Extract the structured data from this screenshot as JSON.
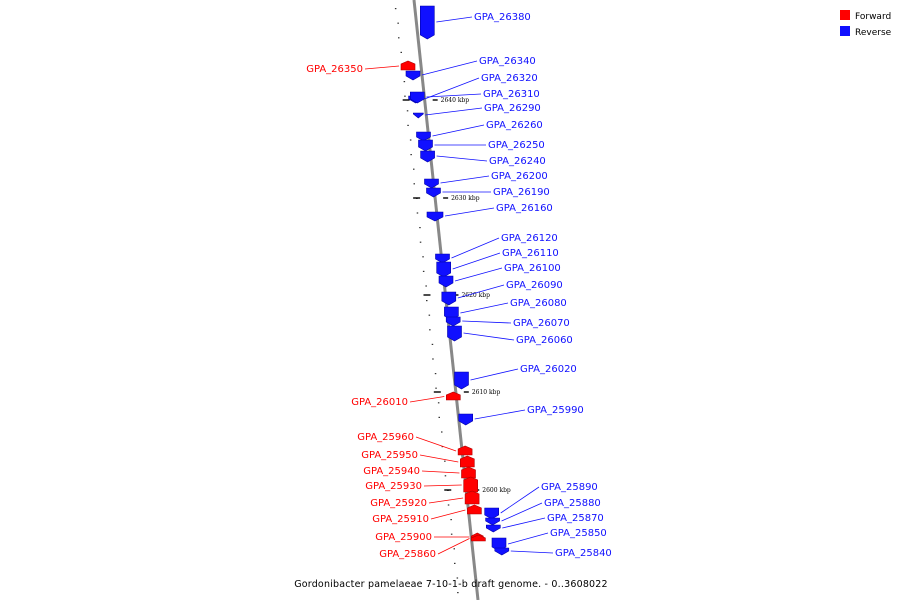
{
  "caption": "Gordonibacter pamelaeae 7-10-1-b draft genome. - 0..3608022",
  "colors": {
    "forward": "#ff0000",
    "reverse": "#1010ff",
    "backbone": "#888888"
  },
  "legend": [
    {
      "label": "Forward",
      "strand": "forward"
    },
    {
      "label": "Reverse",
      "strand": "reverse"
    }
  ],
  "ticks": [
    {
      "label": "2640 kbp"
    },
    {
      "label": "2630 kbp"
    },
    {
      "label": "2620 kbp"
    },
    {
      "label": "2610 kbp"
    },
    {
      "label": "2600 kbp"
    }
  ],
  "genes": [
    {
      "id": "GPA_26380",
      "strand": "reverse"
    },
    {
      "id": "GPA_26350",
      "strand": "forward"
    },
    {
      "id": "GPA_26340",
      "strand": "reverse"
    },
    {
      "id": "GPA_26320",
      "strand": "reverse"
    },
    {
      "id": "GPA_26310",
      "strand": "reverse"
    },
    {
      "id": "GPA_26290",
      "strand": "reverse"
    },
    {
      "id": "GPA_26260",
      "strand": "reverse"
    },
    {
      "id": "GPA_26250",
      "strand": "reverse"
    },
    {
      "id": "GPA_26240",
      "strand": "reverse"
    },
    {
      "id": "GPA_26200",
      "strand": "reverse"
    },
    {
      "id": "GPA_26190",
      "strand": "reverse"
    },
    {
      "id": "GPA_26160",
      "strand": "reverse"
    },
    {
      "id": "GPA_26120",
      "strand": "reverse"
    },
    {
      "id": "GPA_26110",
      "strand": "reverse"
    },
    {
      "id": "GPA_26100",
      "strand": "reverse"
    },
    {
      "id": "GPA_26090",
      "strand": "reverse"
    },
    {
      "id": "GPA_26080",
      "strand": "reverse"
    },
    {
      "id": "GPA_26070",
      "strand": "reverse"
    },
    {
      "id": "GPA_26060",
      "strand": "reverse"
    },
    {
      "id": "GPA_26020",
      "strand": "reverse"
    },
    {
      "id": "GPA_26010",
      "strand": "forward"
    },
    {
      "id": "GPA_25990",
      "strand": "reverse"
    },
    {
      "id": "GPA_25960",
      "strand": "forward"
    },
    {
      "id": "GPA_25950",
      "strand": "forward"
    },
    {
      "id": "GPA_25940",
      "strand": "forward"
    },
    {
      "id": "GPA_25930",
      "strand": "forward"
    },
    {
      "id": "GPA_25920",
      "strand": "forward"
    },
    {
      "id": "GPA_25910",
      "strand": "forward"
    },
    {
      "id": "GPA_25900",
      "strand": "forward"
    },
    {
      "id": "GPA_25860",
      "strand": "forward"
    },
    {
      "id": "GPA_25890",
      "strand": "reverse"
    },
    {
      "id": "GPA_25880",
      "strand": "reverse"
    },
    {
      "id": "GPA_25870",
      "strand": "reverse"
    },
    {
      "id": "GPA_25850",
      "strand": "reverse"
    },
    {
      "id": "GPA_25840",
      "strand": "reverse"
    }
  ]
}
